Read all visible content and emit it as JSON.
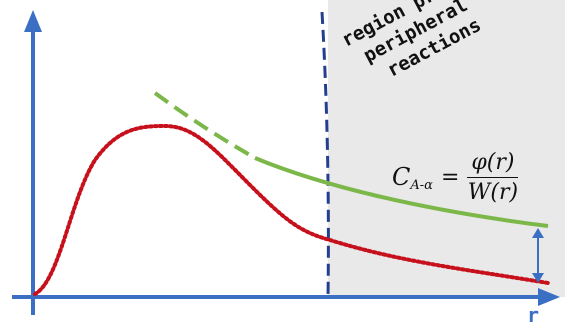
{
  "region_label": [
    "region probed by",
    "peripheral",
    "reactions"
  ],
  "formula": {
    "lhs": "C",
    "lhs_sub": "A-α",
    "equals": "=",
    "numerator": "φ(r)",
    "denominator": "W(r)"
  },
  "x_axis_label": "r",
  "colors": {
    "axis": "#3a6fc4",
    "shaded_region": "#e9e9e9",
    "divider": "#243f8f",
    "green_curve": "#7cb74a",
    "red_curve": "#c6101c",
    "arrow": "#3a6fc4"
  }
}
